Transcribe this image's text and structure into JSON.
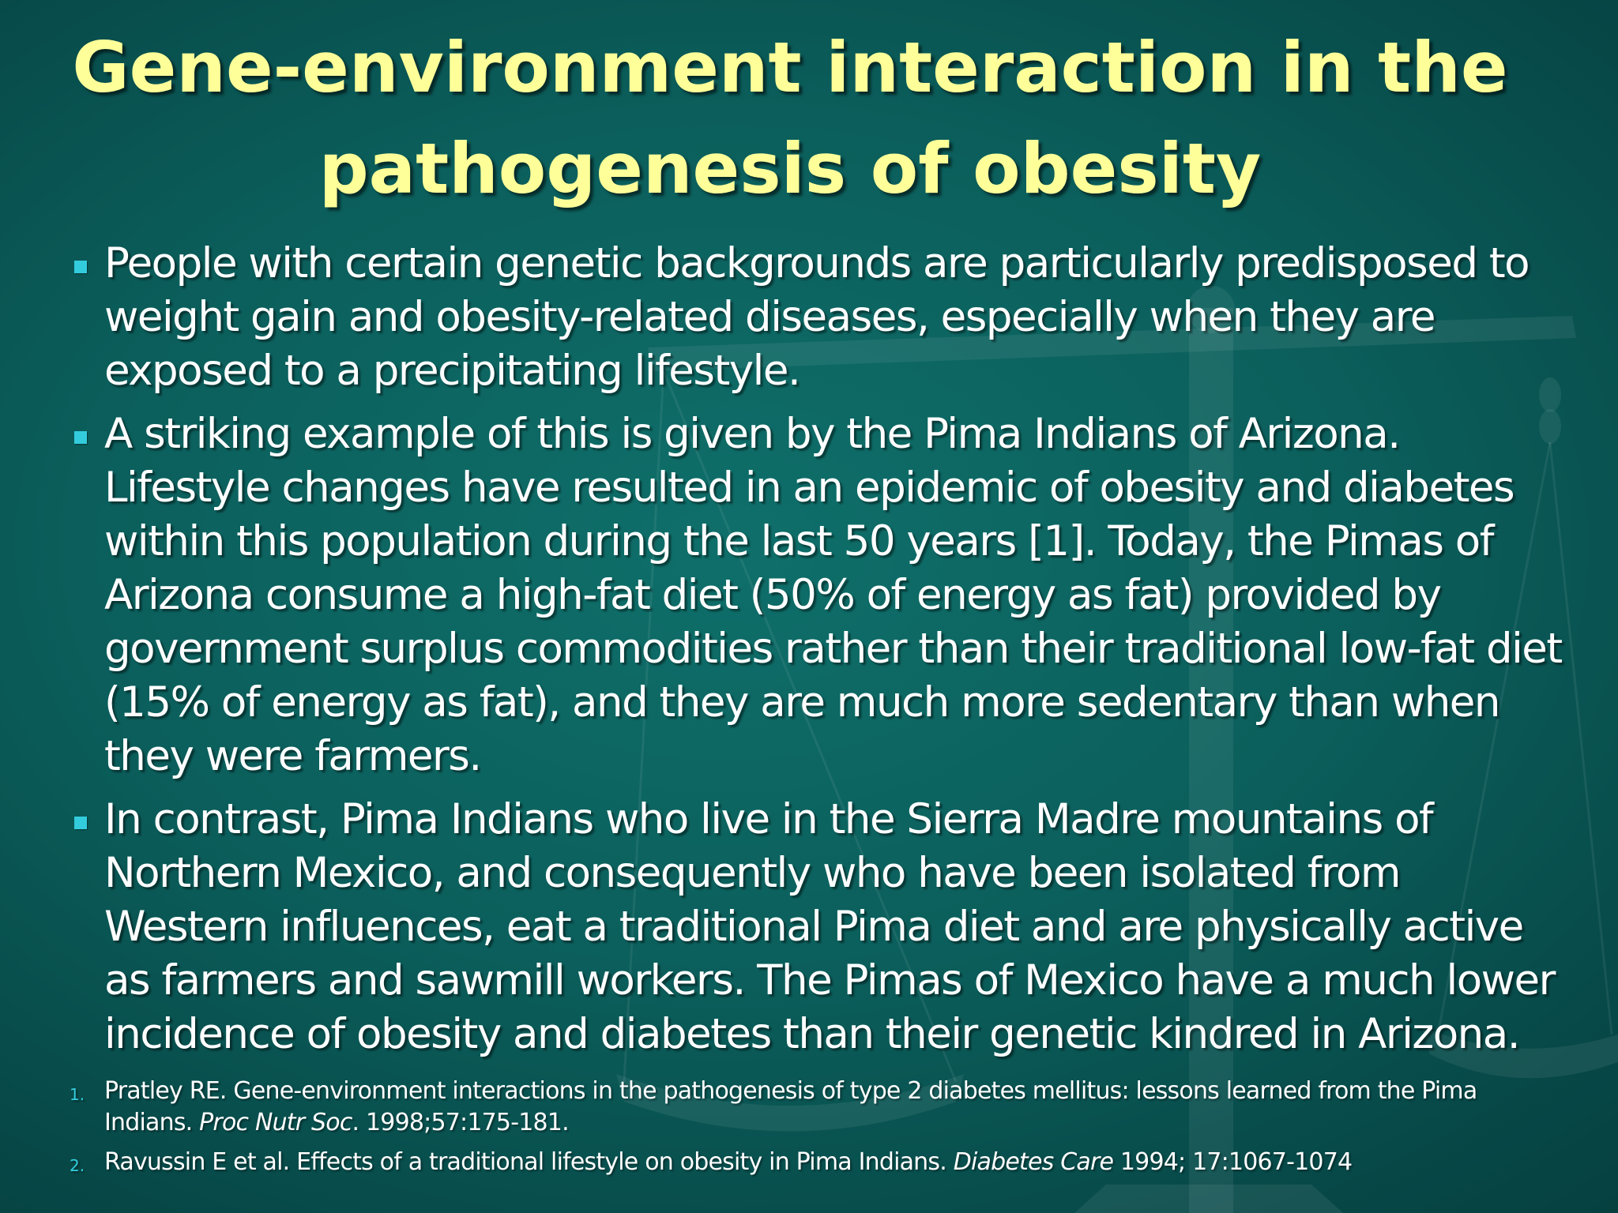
{
  "slide": {
    "title": "Gene-environment interaction in the pathogenesis of obesity",
    "bullets": [
      "People with certain genetic backgrounds are particularly predisposed to weight gain and obesity-related diseases, especially when they are exposed to a precipitating lifestyle.",
      "A striking example of this is given by the Pima Indians of Arizona. Lifestyle changes have resulted in an epidemic of obesity and diabetes within this population during the last 50 years [1]. Today, the Pimas of Arizona consume a high-fat diet (50% of energy as fat) provided by government surplus commodities rather than their traditional low-fat diet (15% of energy as fat), and they are much more sedentary than when they were farmers.",
      "In contrast, Pima Indians who live in the Sierra Madre mountains of Northern Mexico, and consequently who have been isolated from Western influences, eat a traditional Pima diet and are physically active as farmers and sawmill workers. The Pimas of Mexico have a much lower incidence of obesity and diabetes than their genetic kindred in Arizona."
    ],
    "references": [
      {
        "number": "1.",
        "text_before": "Pratley RE. Gene-environment interactions in the pathogenesis of type 2 diabetes mellitus: lessons learned from the Pima Indians. ",
        "journal": "Proc Nutr Soc",
        "text_after": ". 1998;57:175-181."
      },
      {
        "number": "2.",
        "text_before": "Ravussin E et al. Effects of a traditional lifestyle on obesity in Pima Indians. ",
        "journal": "Diabetes Care",
        "text_after": " 1994; 17:1067-1074"
      }
    ]
  },
  "colors": {
    "background": "#0b5e5b",
    "title": "#ffff99",
    "body_text": "#ffffff",
    "bullet_marker": "#33ccdd"
  },
  "icons": {
    "background_art": "balance-scale-icon",
    "bullet": "square-bullet-icon"
  }
}
